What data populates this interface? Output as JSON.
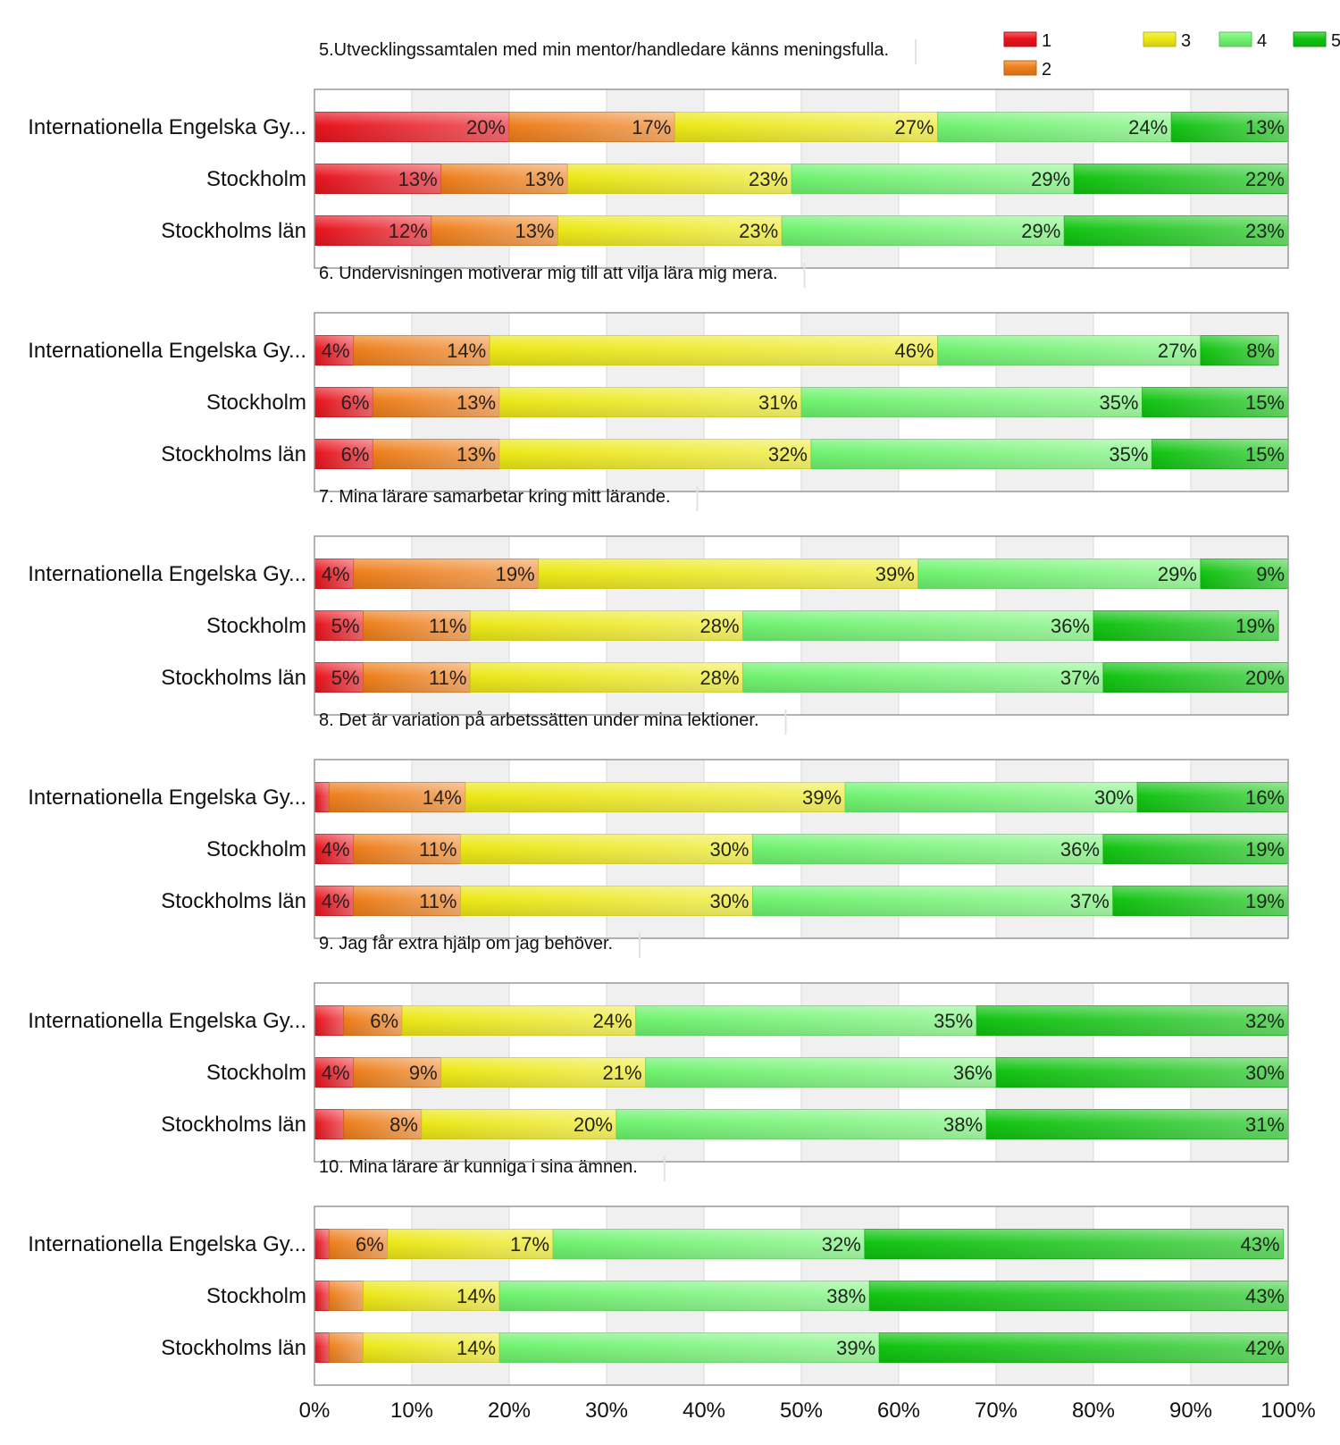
{
  "chart_data": {
    "type": "bar",
    "orientation": "horizontal-stacked-percent",
    "legend": {
      "placement": "top-right",
      "entries": [
        "1",
        "2",
        "3",
        "4",
        "5"
      ]
    },
    "colors": {
      "1": "#e8121c",
      "2": "#ee7e1a",
      "3": "#ece817",
      "4": "#6ff36f",
      "5": "#11c411",
      "grid_band": "#f0f0f0",
      "frame": "#999999",
      "text": "#111111"
    },
    "x_axis": {
      "range": [
        0,
        100
      ],
      "ticks": [
        "0%",
        "10%",
        "20%",
        "30%",
        "40%",
        "50%",
        "60%",
        "70%",
        "80%",
        "90%",
        "100%"
      ]
    },
    "categories": [
      "Internationella Engelska Gy...",
      "Stockholm",
      "Stockholms län"
    ],
    "panels": [
      {
        "title": "5.Utvecklingssamtalen med min mentor/handledare känns meningsfulla.",
        "values": [
          [
            20,
            17,
            27,
            24,
            13
          ],
          [
            13,
            13,
            23,
            29,
            22
          ],
          [
            12,
            13,
            23,
            29,
            23
          ]
        ],
        "labels": [
          [
            "20%",
            "17%",
            "27%",
            "24%",
            "13%"
          ],
          [
            "13%",
            "13%",
            "23%",
            "29%",
            "22%"
          ],
          [
            "12%",
            "13%",
            "23%",
            "29%",
            "23%"
          ]
        ]
      },
      {
        "title": "6. Undervisningen motiverar mig till att vilja lära mig mera.",
        "values": [
          [
            4,
            14,
            46,
            27,
            8
          ],
          [
            6,
            13,
            31,
            35,
            15
          ],
          [
            6,
            13,
            32,
            35,
            15
          ]
        ],
        "labels": [
          [
            "4%",
            "14%",
            "46%",
            "27%",
            "8%"
          ],
          [
            "6%",
            "13%",
            "31%",
            "35%",
            "15%"
          ],
          [
            "6%",
            "13%",
            "32%",
            "35%",
            "15%"
          ]
        ]
      },
      {
        "title": "7. Mina lärare samarbetar kring mitt lärande.",
        "values": [
          [
            4,
            19,
            39,
            29,
            9
          ],
          [
            5,
            11,
            28,
            36,
            19
          ],
          [
            5,
            11,
            28,
            37,
            20
          ]
        ],
        "labels": [
          [
            "4%",
            "19%",
            "39%",
            "29%",
            "9%"
          ],
          [
            "5%",
            "11%",
            "28%",
            "36%",
            "19%"
          ],
          [
            "5%",
            "11%",
            "28%",
            "37%",
            "20%"
          ]
        ]
      },
      {
        "title": "8. Det är variation på arbetssätten under mina lektioner.",
        "values": [
          [
            1.5,
            14,
            39,
            30,
            16
          ],
          [
            4,
            11,
            30,
            36,
            19
          ],
          [
            4,
            11,
            30,
            37,
            19
          ]
        ],
        "labels": [
          [
            "",
            "14%",
            "39%",
            "30%",
            "16%"
          ],
          [
            "4%",
            "11%",
            "30%",
            "36%",
            "19%"
          ],
          [
            "4%",
            "11%",
            "30%",
            "37%",
            "19%"
          ]
        ]
      },
      {
        "title": "9. Jag får extra hjälp om jag behöver.",
        "values": [
          [
            3,
            6,
            24,
            35,
            32
          ],
          [
            4,
            9,
            21,
            36,
            30
          ],
          [
            3,
            8,
            20,
            38,
            31
          ]
        ],
        "labels": [
          [
            "",
            "6%",
            "24%",
            "35%",
            "32%"
          ],
          [
            "4%",
            "9%",
            "21%",
            "36%",
            "30%"
          ],
          [
            "",
            "8%",
            "20%",
            "38%",
            "31%"
          ]
        ]
      },
      {
        "title": "10. Mina lärare är kunniga i sina ämnen.",
        "values": [
          [
            1.5,
            6,
            17,
            32,
            43
          ],
          [
            1.5,
            3.5,
            14,
            38,
            43
          ],
          [
            1.5,
            3.5,
            14,
            39,
            42
          ]
        ],
        "labels": [
          [
            "",
            "6%",
            "17%",
            "32%",
            "43%"
          ],
          [
            "",
            "",
            "14%",
            "38%",
            "43%"
          ],
          [
            "",
            "",
            "14%",
            "39%",
            "42%"
          ]
        ]
      }
    ]
  }
}
